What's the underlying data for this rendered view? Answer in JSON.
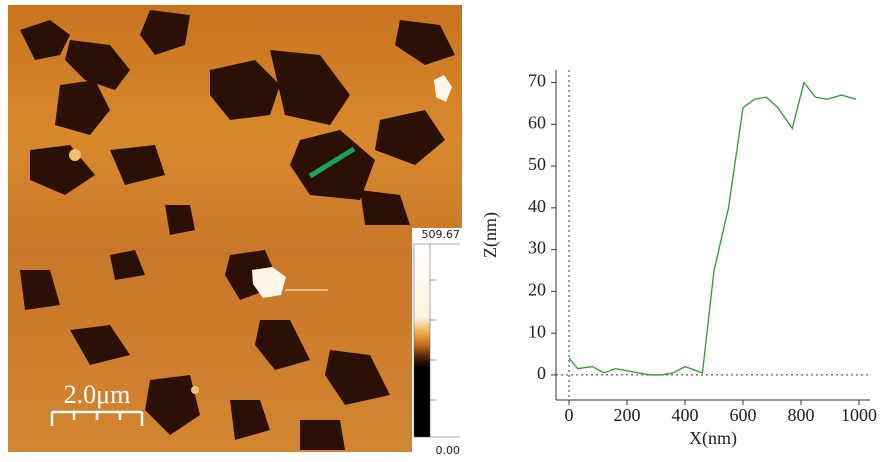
{
  "image": {
    "scale_bar": "2.0μm",
    "colorbar_max": "509.67",
    "colorbar_min": "0.00"
  },
  "chart_data": {
    "type": "line",
    "x_label": "X(nm)",
    "y_label": "Z(nm)",
    "xlim": [
      -45,
      1038
    ],
    "ylim": [
      -6,
      73
    ],
    "xticks": [
      0,
      200,
      400,
      600,
      800,
      1000
    ],
    "yticks": [
      0,
      10,
      20,
      30,
      40,
      50,
      60,
      70
    ],
    "series": [
      {
        "color": "#2e9a2e",
        "x": [
          0,
          30,
          80,
          120,
          160,
          200,
          240,
          280,
          320,
          360,
          400,
          440,
          460,
          500,
          550,
          600,
          640,
          680,
          720,
          770,
          810,
          850,
          890,
          940,
          990
        ],
        "values": [
          4,
          1.5,
          2,
          0.5,
          1.5,
          1,
          0.5,
          0,
          0,
          0.5,
          2,
          1,
          0.5,
          25,
          40,
          64,
          66,
          66.5,
          64,
          59,
          70,
          66.5,
          66,
          67,
          66
        ]
      }
    ]
  }
}
